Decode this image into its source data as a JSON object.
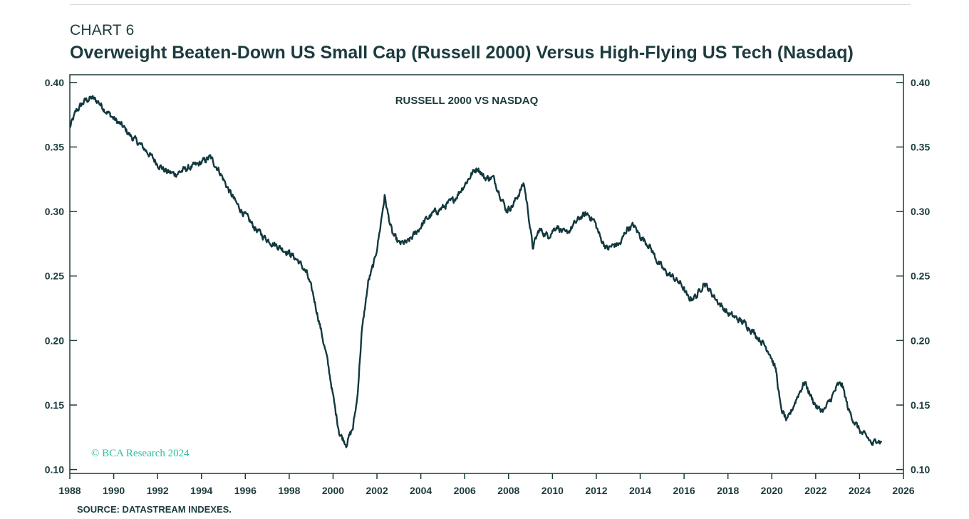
{
  "header": {
    "chart_label": "CHART 6",
    "title": "Overweight Beaten-Down US Small Cap (Russell 2000) Versus High-Flying US Tech (Nasdaq)"
  },
  "footer": {
    "source": "SOURCE: DATASTREAM INDEXES."
  },
  "colors": {
    "line": "#12383d",
    "text": "#1c3b3f",
    "copyright": "#2bbfa0"
  },
  "chart_data": {
    "type": "line",
    "title": "RUSSELL 2000 VS NASDAQ",
    "copyright": "© BCA Research 2024",
    "xlim": [
      1988,
      2026
    ],
    "ylim": [
      0.097,
      0.406
    ],
    "x_ticks": [
      1988,
      1990,
      1992,
      1994,
      1996,
      1998,
      2000,
      2002,
      2004,
      2006,
      2008,
      2010,
      2012,
      2014,
      2016,
      2018,
      2020,
      2022,
      2024,
      2026
    ],
    "x_tick_labels": [
      "1988",
      "1990",
      "1992",
      "1994",
      "1996",
      "1998",
      "2000",
      "2002",
      "2004",
      "2006",
      "2008",
      "2010",
      "2012",
      "2014",
      "2016",
      "2018",
      "2020",
      "2022",
      "2024",
      "2026"
    ],
    "y_ticks": [
      0.1,
      0.15,
      0.2,
      0.25,
      0.3,
      0.35,
      0.4
    ],
    "y_tick_labels": [
      "0.10",
      "0.15",
      "0.20",
      "0.25",
      "0.30",
      "0.35",
      "0.40"
    ],
    "dual_y_axis": true,
    "grid": false,
    "series": [
      {
        "x": [
          1988.0,
          1988.3,
          1988.7,
          1989.0,
          1989.3,
          1989.6,
          1990.0,
          1990.4,
          1990.8,
          1991.2,
          1991.6,
          1992.0,
          1992.4,
          1992.8,
          1993.3,
          1993.8,
          1994.1,
          1994.4,
          1994.8,
          1995.2,
          1995.6,
          1996.0,
          1996.4,
          1996.8,
          1997.2,
          1997.6,
          1998.0,
          1998.4,
          1998.8,
          1999.1,
          1999.4,
          1999.7,
          1999.9,
          2000.1,
          2000.3,
          2000.6,
          2000.9,
          2001.1,
          2001.3,
          2001.6,
          2001.9,
          2002.1,
          2002.35,
          2002.5,
          2002.7,
          2003.0,
          2003.4,
          2003.8,
          2004.2,
          2004.6,
          2005.0,
          2005.5,
          2006.0,
          2006.4,
          2006.6,
          2006.9,
          2007.3,
          2007.6,
          2007.9,
          2008.2,
          2008.5,
          2008.7,
          2008.9,
          2009.1,
          2009.4,
          2009.8,
          2010.2,
          2010.6,
          2011.0,
          2011.3,
          2011.6,
          2011.9,
          2012.2,
          2012.5,
          2012.8,
          2013.1,
          2013.4,
          2013.7,
          2014.0,
          2014.4,
          2014.8,
          2015.1,
          2015.5,
          2015.9,
          2016.2,
          2016.6,
          2016.9,
          2017.2,
          2017.6,
          2018.0,
          2018.4,
          2018.8,
          2019.2,
          2019.6,
          2019.9,
          2020.2,
          2020.4,
          2020.7,
          2021.0,
          2021.2,
          2021.5,
          2021.8,
          2022.1,
          2022.4,
          2022.7,
          2023.0,
          2023.2,
          2023.5,
          2023.8,
          2024.1,
          2024.4,
          2024.6,
          2024.8,
          2025.0
        ],
        "values": [
          0.365,
          0.378,
          0.386,
          0.388,
          0.385,
          0.379,
          0.372,
          0.366,
          0.358,
          0.352,
          0.345,
          0.337,
          0.331,
          0.329,
          0.333,
          0.336,
          0.339,
          0.342,
          0.332,
          0.318,
          0.306,
          0.297,
          0.288,
          0.281,
          0.276,
          0.272,
          0.268,
          0.262,
          0.252,
          0.235,
          0.212,
          0.188,
          0.168,
          0.146,
          0.128,
          0.12,
          0.132,
          0.155,
          0.205,
          0.245,
          0.262,
          0.282,
          0.312,
          0.298,
          0.283,
          0.275,
          0.276,
          0.284,
          0.293,
          0.299,
          0.303,
          0.309,
          0.321,
          0.331,
          0.334,
          0.326,
          0.326,
          0.314,
          0.301,
          0.305,
          0.315,
          0.322,
          0.299,
          0.272,
          0.286,
          0.281,
          0.289,
          0.282,
          0.29,
          0.296,
          0.298,
          0.293,
          0.279,
          0.271,
          0.274,
          0.275,
          0.287,
          0.289,
          0.281,
          0.274,
          0.261,
          0.254,
          0.249,
          0.243,
          0.232,
          0.235,
          0.245,
          0.238,
          0.229,
          0.221,
          0.217,
          0.213,
          0.206,
          0.198,
          0.191,
          0.176,
          0.148,
          0.137,
          0.15,
          0.158,
          0.168,
          0.156,
          0.147,
          0.146,
          0.155,
          0.165,
          0.166,
          0.146,
          0.136,
          0.128,
          0.124,
          0.119,
          0.124,
          0.121
        ]
      }
    ]
  }
}
